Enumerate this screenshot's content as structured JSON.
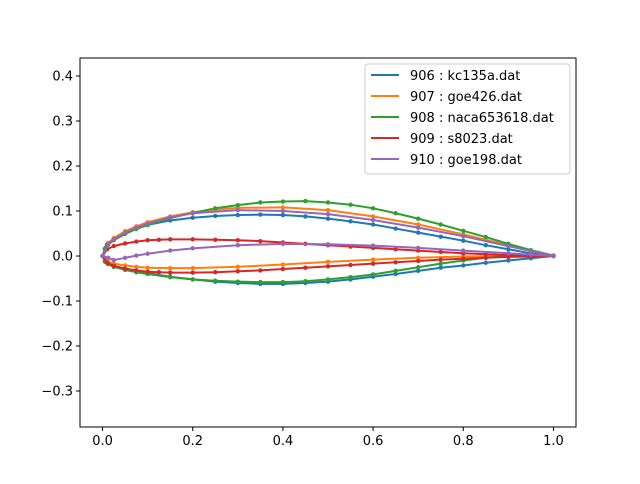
{
  "chart_data": {
    "type": "line",
    "title": "",
    "xlabel": "",
    "ylabel": "",
    "xlim": [
      -0.05,
      1.05
    ],
    "ylim": [
      -0.38,
      0.44
    ],
    "x_ticks": [
      0.0,
      0.2,
      0.4,
      0.6,
      0.8,
      1.0
    ],
    "x_tick_labels": [
      "0.0",
      "0.2",
      "0.4",
      "0.6",
      "0.8",
      "1.0"
    ],
    "y_ticks": [
      0.4,
      0.3,
      0.2,
      0.1,
      0.0,
      -0.1,
      -0.2,
      -0.3
    ],
    "y_tick_labels": [
      "0.4",
      "0.3",
      "0.2",
      "0.1",
      "0.0",
      "−0.1",
      "−0.2",
      "−0.3"
    ],
    "grid": false,
    "legend_position": "top-right",
    "series": [
      {
        "name": "906 : kc135a.dat",
        "color": "#1f77b4",
        "upper": [
          [
            0.0,
            0.0
          ],
          [
            0.01,
            0.026
          ],
          [
            0.025,
            0.038
          ],
          [
            0.05,
            0.052
          ],
          [
            0.075,
            0.062
          ],
          [
            0.1,
            0.069
          ],
          [
            0.15,
            0.079
          ],
          [
            0.2,
            0.085
          ],
          [
            0.25,
            0.089
          ],
          [
            0.3,
            0.091
          ],
          [
            0.35,
            0.092
          ],
          [
            0.4,
            0.091
          ],
          [
            0.45,
            0.088
          ],
          [
            0.5,
            0.083
          ],
          [
            0.55,
            0.077
          ],
          [
            0.6,
            0.07
          ],
          [
            0.65,
            0.061
          ],
          [
            0.7,
            0.052
          ],
          [
            0.75,
            0.043
          ],
          [
            0.8,
            0.034
          ],
          [
            0.85,
            0.024
          ],
          [
            0.9,
            0.015
          ],
          [
            0.95,
            0.006
          ],
          [
            1.0,
            0.0
          ]
        ],
        "lower": [
          [
            0.0,
            0.0
          ],
          [
            0.01,
            -0.015
          ],
          [
            0.025,
            -0.022
          ],
          [
            0.05,
            -0.03
          ],
          [
            0.1,
            -0.038
          ],
          [
            0.15,
            -0.046
          ],
          [
            0.2,
            -0.052
          ],
          [
            0.25,
            -0.057
          ],
          [
            0.3,
            -0.06
          ],
          [
            0.35,
            -0.062
          ],
          [
            0.4,
            -0.062
          ],
          [
            0.45,
            -0.06
          ],
          [
            0.5,
            -0.057
          ],
          [
            0.55,
            -0.052
          ],
          [
            0.6,
            -0.046
          ],
          [
            0.65,
            -0.04
          ],
          [
            0.7,
            -0.033
          ],
          [
            0.75,
            -0.026
          ],
          [
            0.8,
            -0.021
          ],
          [
            0.85,
            -0.015
          ],
          [
            0.9,
            -0.01
          ],
          [
            0.95,
            -0.005
          ],
          [
            1.0,
            0.0
          ]
        ]
      },
      {
        "name": "907 : goe426.dat",
        "color": "#ff7f0e",
        "upper": [
          [
            0.0,
            0.0
          ],
          [
            0.0125,
            0.029
          ],
          [
            0.025,
            0.04
          ],
          [
            0.05,
            0.055
          ],
          [
            0.075,
            0.066
          ],
          [
            0.1,
            0.075
          ],
          [
            0.15,
            0.088
          ],
          [
            0.2,
            0.097
          ],
          [
            0.25,
            0.103
          ],
          [
            0.3,
            0.107
          ],
          [
            0.4,
            0.108
          ],
          [
            0.5,
            0.102
          ],
          [
            0.6,
            0.088
          ],
          [
            0.7,
            0.07
          ],
          [
            0.8,
            0.048
          ],
          [
            0.9,
            0.024
          ],
          [
            0.95,
            0.012
          ],
          [
            1.0,
            0.0
          ]
        ],
        "lower": [
          [
            0.0,
            0.0
          ],
          [
            0.0125,
            -0.013
          ],
          [
            0.025,
            -0.017
          ],
          [
            0.05,
            -0.021
          ],
          [
            0.075,
            -0.024
          ],
          [
            0.1,
            -0.026
          ],
          [
            0.15,
            -0.027
          ],
          [
            0.2,
            -0.027
          ],
          [
            0.3,
            -0.024
          ],
          [
            0.4,
            -0.019
          ],
          [
            0.5,
            -0.013
          ],
          [
            0.6,
            -0.008
          ],
          [
            0.7,
            -0.004
          ],
          [
            0.8,
            -0.001
          ],
          [
            0.9,
            0.0
          ],
          [
            0.95,
            0.0
          ],
          [
            1.0,
            0.0
          ]
        ]
      },
      {
        "name": "908 : naca653618.dat",
        "color": "#2ca02c",
        "upper": [
          [
            0.0,
            0.0
          ],
          [
            0.005,
            0.016
          ],
          [
            0.0075,
            0.019
          ],
          [
            0.0125,
            0.025
          ],
          [
            0.025,
            0.035
          ],
          [
            0.05,
            0.049
          ],
          [
            0.075,
            0.06
          ],
          [
            0.1,
            0.069
          ],
          [
            0.15,
            0.084
          ],
          [
            0.2,
            0.096
          ],
          [
            0.25,
            0.106
          ],
          [
            0.3,
            0.113
          ],
          [
            0.35,
            0.119
          ],
          [
            0.4,
            0.121
          ],
          [
            0.45,
            0.122
          ],
          [
            0.5,
            0.119
          ],
          [
            0.55,
            0.114
          ],
          [
            0.6,
            0.106
          ],
          [
            0.65,
            0.095
          ],
          [
            0.7,
            0.083
          ],
          [
            0.75,
            0.07
          ],
          [
            0.8,
            0.056
          ],
          [
            0.85,
            0.042
          ],
          [
            0.9,
            0.027
          ],
          [
            0.95,
            0.013
          ],
          [
            1.0,
            0.001
          ]
        ],
        "lower": [
          [
            0.0,
            0.0
          ],
          [
            0.005,
            -0.012
          ],
          [
            0.0075,
            -0.014
          ],
          [
            0.0125,
            -0.018
          ],
          [
            0.025,
            -0.024
          ],
          [
            0.05,
            -0.031
          ],
          [
            0.075,
            -0.036
          ],
          [
            0.1,
            -0.04
          ],
          [
            0.15,
            -0.047
          ],
          [
            0.2,
            -0.052
          ],
          [
            0.25,
            -0.055
          ],
          [
            0.3,
            -0.057
          ],
          [
            0.35,
            -0.058
          ],
          [
            0.4,
            -0.058
          ],
          [
            0.45,
            -0.056
          ],
          [
            0.5,
            -0.052
          ],
          [
            0.55,
            -0.047
          ],
          [
            0.6,
            -0.041
          ],
          [
            0.65,
            -0.033
          ],
          [
            0.7,
            -0.025
          ],
          [
            0.75,
            -0.017
          ],
          [
            0.8,
            -0.01
          ],
          [
            0.85,
            -0.004
          ],
          [
            0.9,
            0.0
          ],
          [
            0.95,
            0.002
          ],
          [
            1.0,
            0.001
          ]
        ]
      },
      {
        "name": "909 : s8023.dat",
        "color": "#d62728",
        "upper": [
          [
            0.0,
            0.0
          ],
          [
            0.01,
            0.015
          ],
          [
            0.025,
            0.022
          ],
          [
            0.05,
            0.028
          ],
          [
            0.075,
            0.032
          ],
          [
            0.1,
            0.035
          ],
          [
            0.125,
            0.036
          ],
          [
            0.15,
            0.037
          ],
          [
            0.2,
            0.037
          ],
          [
            0.25,
            0.036
          ],
          [
            0.3,
            0.035
          ],
          [
            0.35,
            0.033
          ],
          [
            0.4,
            0.03
          ],
          [
            0.45,
            0.027
          ],
          [
            0.5,
            0.024
          ],
          [
            0.55,
            0.021
          ],
          [
            0.6,
            0.018
          ],
          [
            0.65,
            0.015
          ],
          [
            0.7,
            0.012
          ],
          [
            0.75,
            0.009
          ],
          [
            0.8,
            0.006
          ],
          [
            0.85,
            0.004
          ],
          [
            0.9,
            0.002
          ],
          [
            0.95,
            0.001
          ],
          [
            1.0,
            0.0
          ]
        ],
        "lower": [
          [
            0.0,
            0.0
          ],
          [
            0.01,
            -0.015
          ],
          [
            0.025,
            -0.022
          ],
          [
            0.05,
            -0.028
          ],
          [
            0.075,
            -0.032
          ],
          [
            0.1,
            -0.035
          ],
          [
            0.125,
            -0.036
          ],
          [
            0.15,
            -0.037
          ],
          [
            0.2,
            -0.037
          ],
          [
            0.25,
            -0.036
          ],
          [
            0.3,
            -0.034
          ],
          [
            0.35,
            -0.032
          ],
          [
            0.4,
            -0.029
          ],
          [
            0.45,
            -0.026
          ],
          [
            0.5,
            -0.023
          ],
          [
            0.55,
            -0.02
          ],
          [
            0.6,
            -0.017
          ],
          [
            0.65,
            -0.014
          ],
          [
            0.7,
            -0.011
          ],
          [
            0.75,
            -0.008
          ],
          [
            0.8,
            -0.006
          ],
          [
            0.85,
            -0.004
          ],
          [
            0.9,
            -0.002
          ],
          [
            0.95,
            -0.001
          ],
          [
            1.0,
            0.0
          ]
        ]
      },
      {
        "name": "910 : goe198.dat",
        "color": "#9467bd",
        "upper": [
          [
            0.0,
            0.0
          ],
          [
            0.0125,
            0.027
          ],
          [
            0.025,
            0.037
          ],
          [
            0.05,
            0.052
          ],
          [
            0.075,
            0.063
          ],
          [
            0.1,
            0.072
          ],
          [
            0.15,
            0.086
          ],
          [
            0.2,
            0.095
          ],
          [
            0.3,
            0.102
          ],
          [
            0.4,
            0.1
          ],
          [
            0.5,
            0.093
          ],
          [
            0.6,
            0.08
          ],
          [
            0.7,
            0.063
          ],
          [
            0.8,
            0.044
          ],
          [
            0.9,
            0.022
          ],
          [
            0.95,
            0.011
          ],
          [
            1.0,
            0.0
          ]
        ],
        "lower": [
          [
            0.0,
            0.0
          ],
          [
            0.0125,
            -0.004
          ],
          [
            0.025,
            -0.009
          ],
          [
            0.05,
            -0.004
          ],
          [
            0.075,
            0.001
          ],
          [
            0.1,
            0.005
          ],
          [
            0.15,
            0.012
          ],
          [
            0.2,
            0.017
          ],
          [
            0.3,
            0.024
          ],
          [
            0.4,
            0.027
          ],
          [
            0.5,
            0.026
          ],
          [
            0.6,
            0.023
          ],
          [
            0.7,
            0.018
          ],
          [
            0.8,
            0.012
          ],
          [
            0.9,
            0.006
          ],
          [
            0.95,
            0.003
          ],
          [
            1.0,
            0.0
          ]
        ]
      }
    ]
  }
}
